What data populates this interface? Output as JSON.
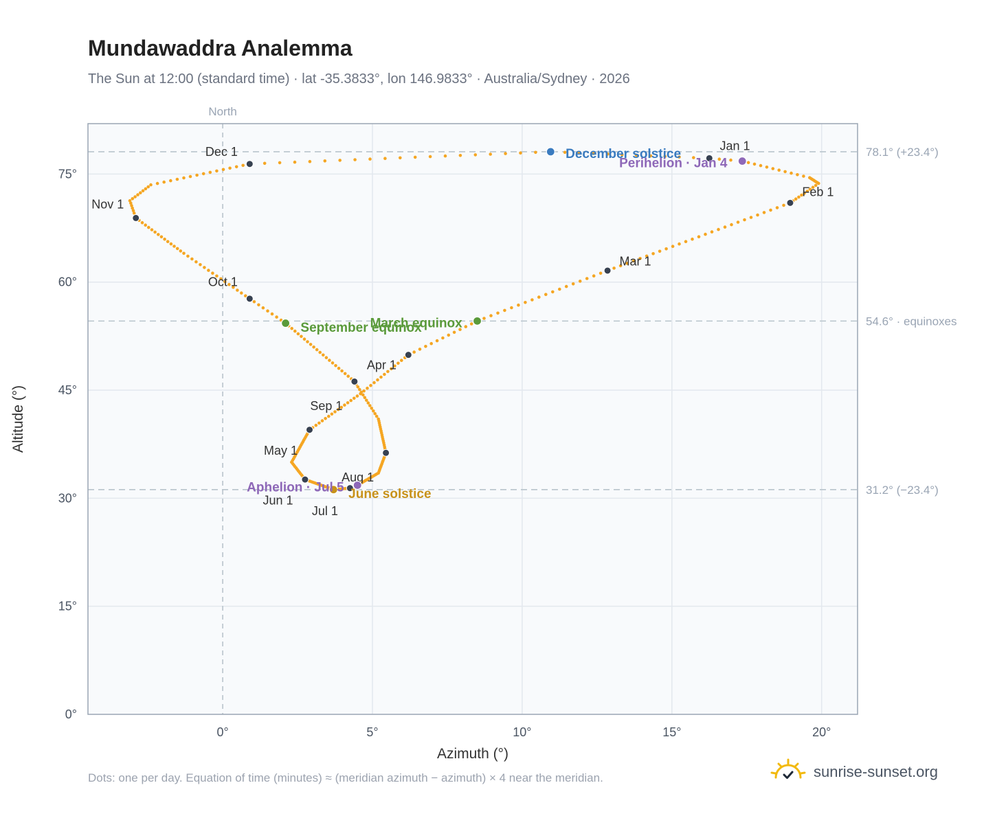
{
  "header": {
    "title": "Mundawaddra Analemma",
    "subtitle": "The Sun at 12:00 (standard time) · lat -35.3833°, lon 146.9833° · Australia/Sydney · 2026"
  },
  "footer": {
    "note": "Dots: one per day. Equation of time (minutes) ≈ (meridian azimuth − azimuth) × 4 near the meridian.",
    "brand": "sunrise-sunset.org",
    "brand_icon": "sun-check-icon"
  },
  "colors": {
    "path": "#f5a623",
    "month_dot": "#374151",
    "equinox": "#5a9a3a",
    "december_solstice": "#3a7bbf",
    "june_solstice": "#c8921a",
    "apsis": "#8e68b8",
    "grid": "#e3e8ee",
    "ref_line": "#b8c4cc",
    "plot_bg": "#f8fafc",
    "frame": "#9aa5b4"
  },
  "chart_data": {
    "type": "scatter",
    "title": "Mundawaddra Analemma",
    "xlabel": "Azimuth (°)",
    "ylabel": "Altitude (°)",
    "xlim": [
      -4.5,
      21.2
    ],
    "ylim": [
      0,
      82
    ],
    "x_ticks": [
      {
        "value": 0,
        "label": "0°"
      },
      {
        "value": 5,
        "label": "5°"
      },
      {
        "value": 10,
        "label": "10°"
      },
      {
        "value": 15,
        "label": "15°"
      },
      {
        "value": 20,
        "label": "20°"
      }
    ],
    "y_ticks": [
      {
        "value": 0,
        "label": "0°"
      },
      {
        "value": 15,
        "label": "15°"
      },
      {
        "value": 30,
        "label": "30°"
      },
      {
        "value": 45,
        "label": "45°"
      },
      {
        "value": 60,
        "label": "60°"
      },
      {
        "value": 75,
        "label": "75°"
      }
    ],
    "grid": true,
    "reference_lines": [
      {
        "axis": "x",
        "value": 0,
        "label": "North"
      },
      {
        "axis": "y",
        "value": 78.1,
        "label": "78.1° (+23.4°)"
      },
      {
        "axis": "y",
        "value": 54.6,
        "label": "54.6° · equinoxes"
      },
      {
        "axis": "y",
        "value": 31.2,
        "label": "31.2° (−23.4°)"
      }
    ],
    "daily_path_anchors": [
      {
        "doy": 1,
        "az": 16.2,
        "alt": 77.2
      },
      {
        "doy": 4,
        "az": 17.35,
        "alt": 76.8
      },
      {
        "doy": 15,
        "az": 19.6,
        "alt": 74.5
      },
      {
        "doy": 22,
        "az": 19.9,
        "alt": 73.7
      },
      {
        "doy": 32,
        "az": 18.95,
        "alt": 71.0
      },
      {
        "doy": 60,
        "az": 12.85,
        "alt": 61.6
      },
      {
        "doy": 79,
        "az": 8.5,
        "alt": 54.6
      },
      {
        "doy": 91,
        "az": 6.2,
        "alt": 49.9
      },
      {
        "doy": 105,
        "az": 4.6,
        "alt": 44.5
      },
      {
        "doy": 121,
        "az": 2.9,
        "alt": 39.5
      },
      {
        "doy": 140,
        "az": 2.3,
        "alt": 35.0
      },
      {
        "doy": 152,
        "az": 2.75,
        "alt": 32.6
      },
      {
        "doy": 172,
        "az": 3.7,
        "alt": 31.2
      },
      {
        "doy": 182,
        "az": 4.25,
        "alt": 31.4
      },
      {
        "doy": 186,
        "az": 4.5,
        "alt": 31.8
      },
      {
        "doy": 200,
        "az": 5.2,
        "alt": 33.5
      },
      {
        "doy": 213,
        "az": 5.45,
        "alt": 36.3
      },
      {
        "doy": 230,
        "az": 5.2,
        "alt": 41.0
      },
      {
        "doy": 244,
        "az": 4.4,
        "alt": 46.2
      },
      {
        "doy": 266,
        "az": 2.1,
        "alt": 54.3
      },
      {
        "doy": 274,
        "az": 0.9,
        "alt": 57.7
      },
      {
        "doy": 290,
        "az": -1.3,
        "alt": 64.0
      },
      {
        "doy": 305,
        "az": -2.9,
        "alt": 68.9
      },
      {
        "doy": 312,
        "az": -3.1,
        "alt": 71.3
      },
      {
        "doy": 320,
        "az": -2.4,
        "alt": 73.5
      },
      {
        "doy": 335,
        "az": 0.9,
        "alt": 76.4
      },
      {
        "doy": 355,
        "az": 10.95,
        "alt": 78.1
      },
      {
        "doy": 366,
        "az": 16.2,
        "alt": 77.2
      }
    ],
    "month_markers": [
      {
        "label": "Jan 1",
        "az": 16.25,
        "alt": 77.2,
        "anchor": "start",
        "dx": 0.35,
        "dy": 1.7
      },
      {
        "label": "Feb 1",
        "az": 18.95,
        "alt": 71.0,
        "anchor": "start",
        "dx": 0.4,
        "dy": 1.5
      },
      {
        "label": "Mar 1",
        "az": 12.85,
        "alt": 61.6,
        "anchor": "start",
        "dx": 0.4,
        "dy": 1.3
      },
      {
        "label": "Apr 1",
        "az": 6.2,
        "alt": 49.9,
        "anchor": "end",
        "dx": -0.4,
        "dy": -1.4
      },
      {
        "label": "May 1",
        "az": 2.9,
        "alt": 39.5,
        "anchor": "end",
        "dx": -0.4,
        "dy": -2.9
      },
      {
        "label": "Jun 1",
        "az": 2.75,
        "alt": 32.6,
        "anchor": "end",
        "dx": -0.4,
        "dy": -2.9
      },
      {
        "label": "Jul 1",
        "az": 4.25,
        "alt": 31.4,
        "anchor": "end",
        "dx": -0.4,
        "dy": -3.2
      },
      {
        "label": "Aug 1",
        "az": 5.45,
        "alt": 36.3,
        "anchor": "end",
        "dx": -0.4,
        "dy": -3.4
      },
      {
        "label": "Sep 1",
        "az": 4.4,
        "alt": 46.2,
        "anchor": "end",
        "dx": -0.4,
        "dy": -3.4
      },
      {
        "label": "Oct 1",
        "az": 0.9,
        "alt": 57.7,
        "anchor": "end",
        "dx": -0.4,
        "dy": 2.3
      },
      {
        "label": "Nov 1",
        "az": -2.9,
        "alt": 68.9,
        "anchor": "end",
        "dx": -0.4,
        "dy": 1.9
      },
      {
        "label": "Dec 1",
        "az": 0.9,
        "alt": 76.4,
        "anchor": "end",
        "dx": -0.4,
        "dy": 1.7
      }
    ],
    "events": [
      {
        "label": "December solstice",
        "az": 10.95,
        "alt": 78.1,
        "color_key": "december_solstice",
        "anchor": "start",
        "dx": 0.5,
        "dy": -0.3
      },
      {
        "label": "Perihelion · Jan 4",
        "az": 17.35,
        "alt": 76.8,
        "color_key": "apsis",
        "anchor": "end",
        "dx": -0.5,
        "dy": -0.3
      },
      {
        "label": "March equinox",
        "az": 8.5,
        "alt": 54.6,
        "color_key": "equinox",
        "anchor": "end",
        "dx": -0.5,
        "dy": -0.3
      },
      {
        "label": "September equinox",
        "az": 2.1,
        "alt": 54.3,
        "color_key": "equinox",
        "anchor": "start",
        "dx": 0.5,
        "dy": -0.6
      },
      {
        "label": "June solstice",
        "az": 3.7,
        "alt": 31.2,
        "color_key": "june_solstice",
        "anchor": "start",
        "dx": 0.5,
        "dy": -0.6
      },
      {
        "label": "Aphelion · Jul 5",
        "az": 4.5,
        "alt": 31.8,
        "color_key": "apsis",
        "anchor": "end",
        "dx": -0.45,
        "dy": -0.3
      }
    ]
  }
}
